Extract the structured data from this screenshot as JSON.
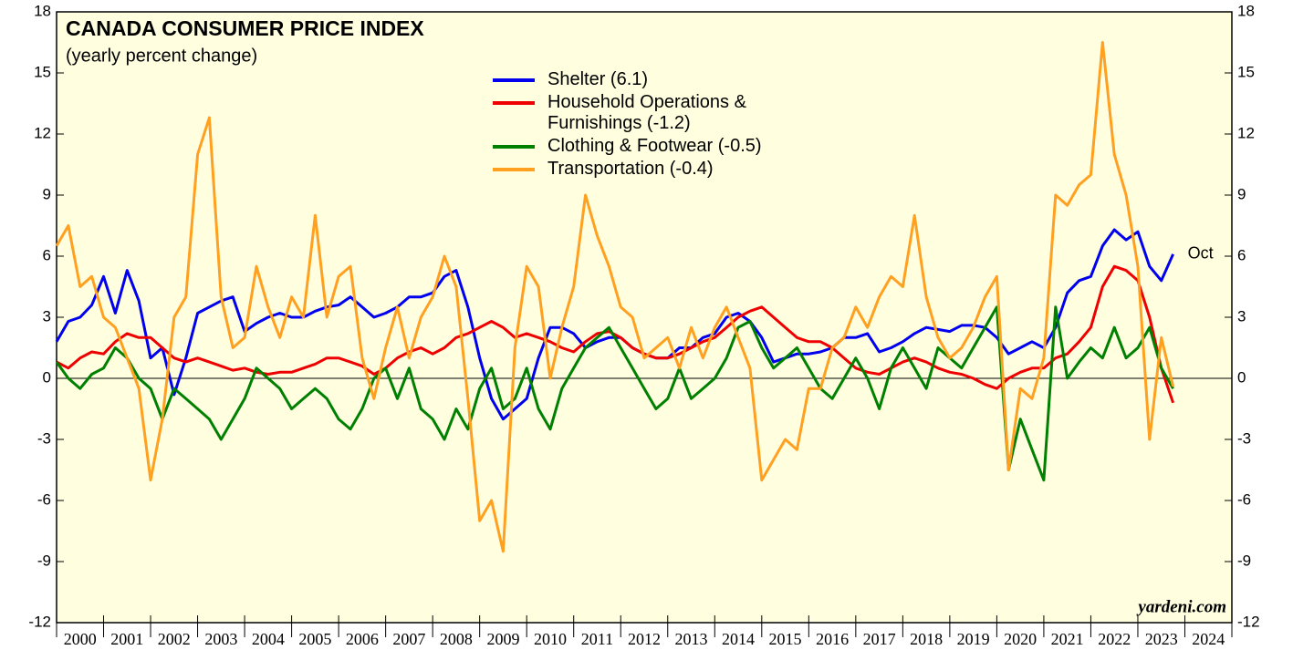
{
  "chart_data": {
    "type": "line",
    "title": "CANADA CONSUMER PRICE INDEX",
    "subtitle": "(yearly percent change)",
    "annotations": {
      "last_month": "Oct",
      "source": "yardeni.com"
    },
    "x": [
      2000,
      2000.25,
      2000.5,
      2000.75,
      2001,
      2001.25,
      2001.5,
      2001.75,
      2002,
      2002.25,
      2002.5,
      2002.75,
      2003,
      2003.25,
      2003.5,
      2003.75,
      2004,
      2004.25,
      2004.5,
      2004.75,
      2005,
      2005.25,
      2005.5,
      2005.75,
      2006,
      2006.25,
      2006.5,
      2006.75,
      2007,
      2007.25,
      2007.5,
      2007.75,
      2008,
      2008.25,
      2008.5,
      2008.75,
      2009,
      2009.25,
      2009.5,
      2009.75,
      2010,
      2010.25,
      2010.5,
      2010.75,
      2011,
      2011.25,
      2011.5,
      2011.75,
      2012,
      2012.25,
      2012.5,
      2012.75,
      2013,
      2013.25,
      2013.5,
      2013.75,
      2014,
      2014.25,
      2014.5,
      2014.75,
      2015,
      2015.25,
      2015.5,
      2015.75,
      2016,
      2016.25,
      2016.5,
      2016.75,
      2017,
      2017.25,
      2017.5,
      2017.75,
      2018,
      2018.25,
      2018.5,
      2018.75,
      2019,
      2019.25,
      2019.5,
      2019.75,
      2020,
      2020.25,
      2020.5,
      2020.75,
      2021,
      2021.25,
      2021.5,
      2021.75,
      2022,
      2022.25,
      2022.5,
      2022.75,
      2023,
      2023.25,
      2023.5,
      2023.75
    ],
    "series": [
      {
        "name": "Shelter (6.1)",
        "color": "#0000ee",
        "values": [
          1.8,
          2.8,
          3.0,
          3.6,
          5.0,
          3.2,
          5.3,
          3.8,
          1.0,
          1.5,
          -0.8,
          1.0,
          3.2,
          3.5,
          3.8,
          4.0,
          2.3,
          2.7,
          3.0,
          3.2,
          3.0,
          3.0,
          3.3,
          3.5,
          3.6,
          4.0,
          3.5,
          3.0,
          3.2,
          3.5,
          4.0,
          4.0,
          4.2,
          5.0,
          5.3,
          3.5,
          1.0,
          -1.0,
          -2.0,
          -1.5,
          -1.0,
          1.0,
          2.5,
          2.5,
          2.2,
          1.5,
          1.8,
          2.0,
          2.0,
          1.5,
          1.2,
          1.0,
          1.0,
          1.5,
          1.5,
          2.0,
          2.2,
          3.0,
          3.2,
          2.8,
          2.0,
          0.8,
          1.0,
          1.2,
          1.2,
          1.3,
          1.5,
          2.0,
          2.0,
          2.2,
          1.3,
          1.5,
          1.8,
          2.2,
          2.5,
          2.4,
          2.3,
          2.6,
          2.6,
          2.5,
          2.0,
          1.2,
          1.5,
          1.8,
          1.5,
          2.5,
          4.2,
          4.8,
          5.0,
          6.5,
          7.3,
          6.8,
          7.2,
          5.5,
          4.8,
          6.1
        ]
      },
      {
        "name": "Household Operations & Furnishings (-1.2)",
        "color": "#ee0000",
        "values": [
          0.8,
          0.5,
          1.0,
          1.3,
          1.2,
          1.8,
          2.2,
          2.0,
          2.0,
          1.5,
          1.0,
          0.8,
          1.0,
          0.8,
          0.6,
          0.4,
          0.5,
          0.3,
          0.2,
          0.3,
          0.3,
          0.5,
          0.7,
          1.0,
          1.0,
          0.8,
          0.6,
          0.2,
          0.5,
          1.0,
          1.3,
          1.5,
          1.2,
          1.5,
          2.0,
          2.2,
          2.5,
          2.8,
          2.5,
          2.0,
          2.2,
          2.0,
          1.8,
          1.5,
          1.3,
          1.8,
          2.2,
          2.3,
          2.0,
          1.5,
          1.2,
          1.0,
          1.0,
          1.2,
          1.5,
          1.8,
          2.0,
          2.5,
          3.0,
          3.3,
          3.5,
          3.0,
          2.5,
          2.0,
          1.8,
          1.8,
          1.5,
          1.0,
          0.5,
          0.3,
          0.2,
          0.5,
          0.8,
          1.0,
          0.8,
          0.5,
          0.3,
          0.2,
          0.0,
          -0.3,
          -0.5,
          0.0,
          0.3,
          0.5,
          0.5,
          1.0,
          1.2,
          1.8,
          2.5,
          4.5,
          5.5,
          5.3,
          4.8,
          3.0,
          0.5,
          -1.2
        ]
      },
      {
        "name": "Clothing & Footwear (-0.5)",
        "color": "#008000",
        "values": [
          0.8,
          0.0,
          -0.5,
          0.2,
          0.5,
          1.5,
          1.0,
          0.0,
          -0.5,
          -2.0,
          -0.5,
          -1.0,
          -1.5,
          -2.0,
          -3.0,
          -2.0,
          -1.0,
          0.5,
          0.0,
          -0.5,
          -1.5,
          -1.0,
          -0.5,
          -1.0,
          -2.0,
          -2.5,
          -1.5,
          0.0,
          0.5,
          -1.0,
          0.5,
          -1.5,
          -2.0,
          -3.0,
          -1.5,
          -2.5,
          -0.5,
          0.5,
          -1.5,
          -1.0,
          0.5,
          -1.5,
          -2.5,
          -0.5,
          0.5,
          1.5,
          2.0,
          2.5,
          1.5,
          0.5,
          -0.5,
          -1.5,
          -1.0,
          0.5,
          -1.0,
          -0.5,
          0.0,
          1.0,
          2.5,
          2.8,
          1.5,
          0.5,
          1.0,
          1.5,
          0.5,
          -0.5,
          -1.0,
          0.0,
          1.0,
          0.0,
          -1.5,
          0.5,
          1.5,
          0.5,
          -0.5,
          1.5,
          1.0,
          0.5,
          1.5,
          2.5,
          3.5,
          -4.5,
          -2.0,
          -3.5,
          -5.0,
          3.5,
          0.0,
          0.8,
          1.5,
          1.0,
          2.5,
          1.0,
          1.5,
          2.5,
          0.5,
          -0.5
        ]
      },
      {
        "name": "Transportation (-0.4)",
        "color": "#ffa020",
        "values": [
          6.5,
          7.5,
          4.5,
          5.0,
          3.0,
          2.5,
          1.0,
          -0.5,
          -5.0,
          -2.0,
          3.0,
          4.0,
          11.0,
          12.8,
          4.0,
          1.5,
          2.0,
          5.5,
          3.5,
          2.0,
          4.0,
          3.0,
          8.0,
          3.0,
          5.0,
          5.5,
          1.0,
          -1.0,
          1.5,
          3.5,
          1.0,
          3.0,
          4.0,
          6.0,
          4.5,
          -1.0,
          -7.0,
          -6.0,
          -8.5,
          1.5,
          5.5,
          4.5,
          0.0,
          2.5,
          4.5,
          9.0,
          7.0,
          5.5,
          3.5,
          3.0,
          1.0,
          1.5,
          2.0,
          0.5,
          2.5,
          1.0,
          2.5,
          3.5,
          2.0,
          0.5,
          -5.0,
          -4.0,
          -3.0,
          -3.5,
          -0.5,
          -0.5,
          1.5,
          2.0,
          3.5,
          2.5,
          4.0,
          5.0,
          4.5,
          8.0,
          4.0,
          2.0,
          1.0,
          1.5,
          2.5,
          4.0,
          5.0,
          -4.5,
          -0.5,
          -1.0,
          1.0,
          9.0,
          8.5,
          9.5,
          10.0,
          16.5,
          11.0,
          9.0,
          5.5,
          -3.0,
          2.0,
          -0.4
        ]
      }
    ],
    "xlim": [
      2000,
      2025
    ],
    "xticks": [
      2000,
      2001,
      2002,
      2003,
      2004,
      2005,
      2006,
      2007,
      2008,
      2009,
      2010,
      2011,
      2012,
      2013,
      2014,
      2015,
      2016,
      2017,
      2018,
      2019,
      2020,
      2021,
      2022,
      2023,
      2024,
      2025
    ],
    "year_labels": [
      "2000",
      "2001",
      "2002",
      "2003",
      "2004",
      "2005",
      "2006",
      "2007",
      "2008",
      "2009",
      "2010",
      "2011",
      "2012",
      "2013",
      "2014",
      "2015",
      "2016",
      "2017",
      "2018",
      "2019",
      "2020",
      "2021",
      "2022",
      "2023",
      "2024"
    ],
    "ylim": [
      -12,
      18
    ],
    "yticks": [
      -12,
      -9,
      -6,
      -3,
      0,
      3,
      6,
      9,
      12,
      15,
      18
    ],
    "zero_line": true
  }
}
